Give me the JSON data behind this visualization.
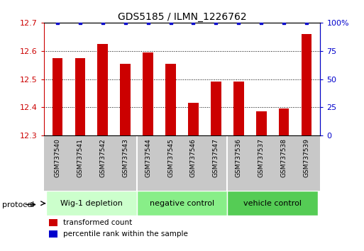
{
  "title": "GDS5185 / ILMN_1226762",
  "samples": [
    "GSM737540",
    "GSM737541",
    "GSM737542",
    "GSM737543",
    "GSM737544",
    "GSM737545",
    "GSM737546",
    "GSM737547",
    "GSM737536",
    "GSM737537",
    "GSM737538",
    "GSM737539"
  ],
  "red_values": [
    12.575,
    12.575,
    12.625,
    12.555,
    12.595,
    12.555,
    12.415,
    12.49,
    12.49,
    12.385,
    12.395,
    12.66
  ],
  "blue_values": [
    100,
    100,
    100,
    100,
    100,
    100,
    100,
    100,
    100,
    100,
    100,
    100
  ],
  "y_left_min": 12.3,
  "y_left_max": 12.7,
  "y_right_min": 0,
  "y_right_max": 100,
  "y_left_ticks": [
    12.3,
    12.4,
    12.5,
    12.6,
    12.7
  ],
  "y_right_ticks": [
    0,
    25,
    50,
    75,
    100
  ],
  "groups": [
    {
      "label": "Wig-1 depletion",
      "start": 0,
      "end": 4,
      "color": "#ccffcc"
    },
    {
      "label": "negative control",
      "start": 4,
      "end": 8,
      "color": "#88ee88"
    },
    {
      "label": "vehicle control",
      "start": 8,
      "end": 12,
      "color": "#55cc55"
    }
  ],
  "bar_color": "#cc0000",
  "dot_color": "#0000cc",
  "bar_bottom": 12.3,
  "protocol_label": "protocol",
  "legend_red": "transformed count",
  "legend_blue": "percentile rank within the sample",
  "tick_area_color": "#c8c8c8",
  "plot_bg": "#ffffff",
  "xlim_left": -0.6,
  "xlim_right": 11.6
}
